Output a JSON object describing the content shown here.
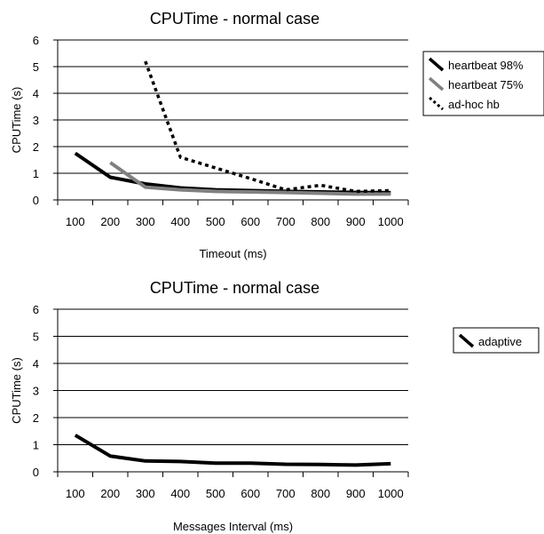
{
  "chart_data": [
    {
      "type": "line",
      "title": "CPUTime - normal case",
      "xlabel": "Timeout (ms)",
      "ylabel": "CPUTime (s)",
      "categories": [
        "100",
        "200",
        "300",
        "400",
        "500",
        "600",
        "700",
        "800",
        "900",
        "1000"
      ],
      "ylim": [
        0,
        6
      ],
      "yticks": [
        "0",
        "1",
        "2",
        "3",
        "4",
        "5",
        "6"
      ],
      "grid": "horizontal",
      "legend_position": "right",
      "series": [
        {
          "name": "heartbeat 98%",
          "values": [
            1.75,
            0.85,
            0.6,
            0.45,
            0.38,
            0.35,
            0.32,
            0.3,
            0.28,
            0.27
          ],
          "color": "#000000",
          "style": "solid"
        },
        {
          "name": "heartbeat 75%",
          "values": [
            null,
            1.4,
            0.48,
            0.38,
            0.32,
            0.3,
            0.28,
            0.25,
            0.22,
            0.22
          ],
          "color": "#808080",
          "style": "solid"
        },
        {
          "name": "ad-hoc hb",
          "values": [
            null,
            null,
            5.2,
            1.6,
            1.2,
            0.8,
            0.38,
            0.55,
            0.32,
            0.35
          ],
          "color": "#000000",
          "style": "dotted"
        }
      ]
    },
    {
      "type": "line",
      "title": "CPUTime - normal case",
      "xlabel": "Messages Interval (ms)",
      "ylabel": "CPUTime (s)",
      "categories": [
        "100",
        "200",
        "300",
        "400",
        "500",
        "600",
        "700",
        "800",
        "900",
        "1000"
      ],
      "ylim": [
        0,
        6
      ],
      "yticks": [
        "0",
        "1",
        "2",
        "3",
        "4",
        "5",
        "6"
      ],
      "grid": "horizontal",
      "legend_position": "right",
      "series": [
        {
          "name": "adaptive",
          "values": [
            1.35,
            0.58,
            0.4,
            0.38,
            0.32,
            0.32,
            0.28,
            0.27,
            0.25,
            0.3
          ],
          "color": "#000000",
          "style": "solid"
        }
      ]
    }
  ]
}
